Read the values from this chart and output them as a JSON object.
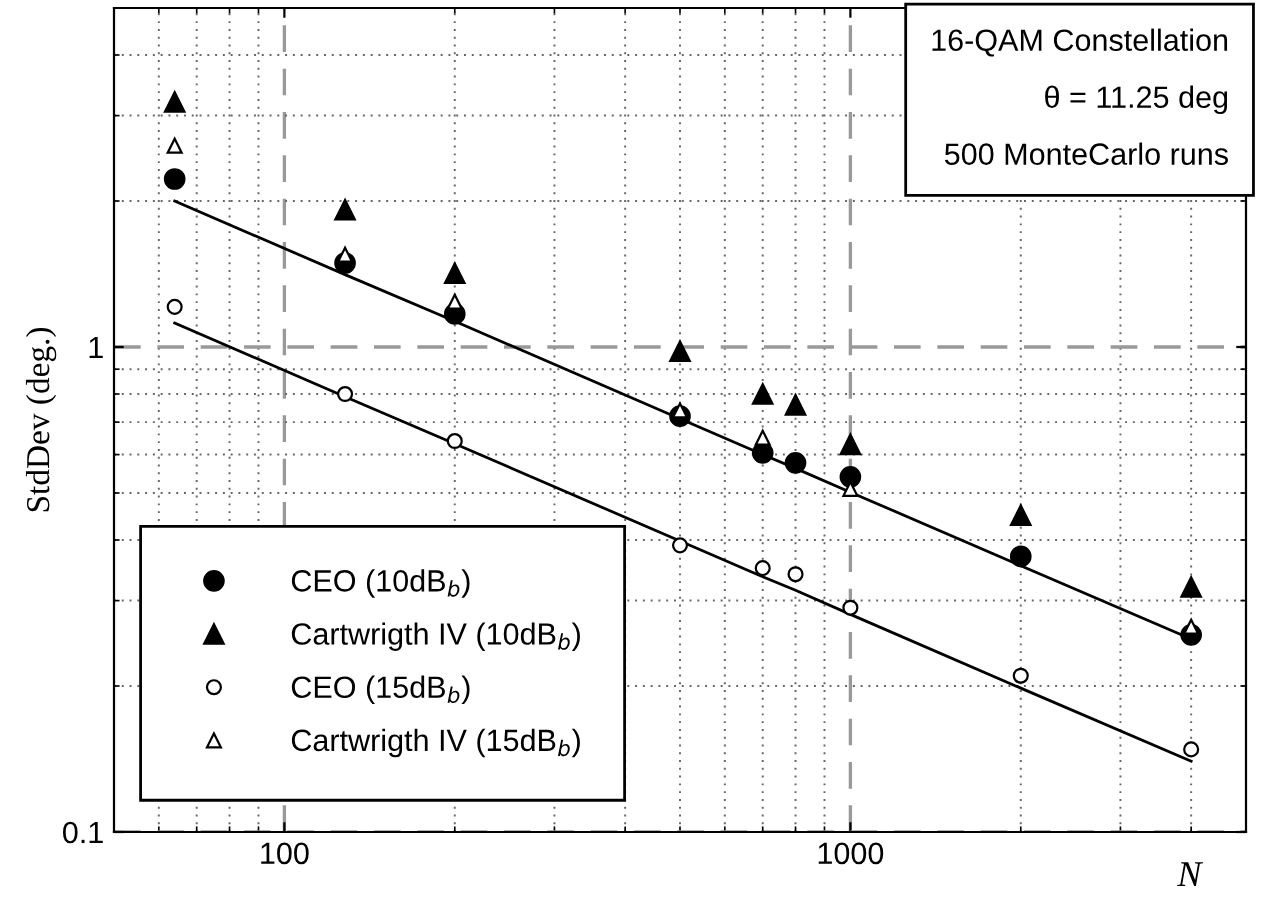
{
  "chart_data": {
    "type": "scatter",
    "xlabel": "N",
    "ylabel": "StdDev (deg.)",
    "x": [
      64,
      128,
      200,
      500,
      700,
      800,
      1000,
      2000,
      4000
    ],
    "series": [
      {
        "name": "CEO (10dB$_{b}$)",
        "color": "#000000",
        "marker": "circle",
        "values": [
          2.22,
          1.49,
          1.17,
          0.72,
          0.605,
          0.577,
          0.54,
          0.37,
          0.255
        ]
      },
      {
        "name": "Cartwrigth IV (10dB$_{b}$)",
        "color": "#000000",
        "marker": "triangle",
        "values": [
          3.2,
          1.92,
          1.42,
          0.98,
          0.8,
          0.76,
          0.63,
          0.45,
          0.32
        ]
      },
      {
        "name": "CEO (15dB$_{b}$)",
        "color": "#ffffff",
        "marker": "circle",
        "values": [
          1.21,
          0.8,
          0.64,
          0.39,
          0.35,
          0.34,
          0.29,
          0.21,
          0.148
        ]
      },
      {
        "name": "Cartwrigth IV (15dB$_{b}$)",
        "color": "#ffffff",
        "marker": "triangle",
        "values": [
          2.6,
          1.55,
          1.24,
          0.74,
          0.65,
          null,
          0.51,
          null,
          0.265
        ]
      },
      {
        "type": "line",
        "color": "#000000",
        "marker": "none",
        "values": [
          2.0,
          1.41,
          1.13,
          0.711,
          0.6,
          0.562,
          0.502,
          0.354,
          0.25
        ]
      },
      {
        "type": "line",
        "color": "#000000",
        "marker": "none",
        "values": [
          1.12,
          0.79,
          0.632,
          0.398,
          0.336,
          0.315,
          0.281,
          0.198,
          0.14
        ]
      }
    ],
    "log": "xy",
    "xlim": [
      50,
      5000
    ],
    "ylim": [
      0.1,
      5
    ],
    "xticks": [
      100,
      1000
    ],
    "yticks": [
      0.1,
      1
    ],
    "grid": true,
    "legend": "bottom left",
    "annotations": [
      "16-QAM Constellation",
      "θ = 11.25 deg",
      "500 MonteCarlo runs"
    ]
  }
}
